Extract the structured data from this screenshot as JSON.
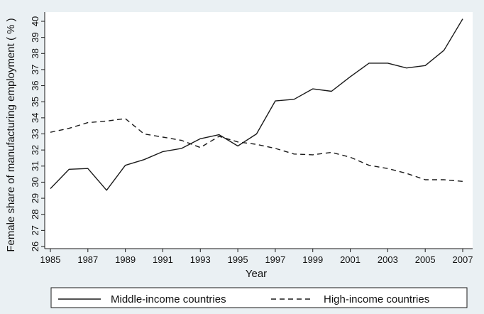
{
  "chart_data": {
    "type": "line",
    "title": "",
    "xlabel": "Year",
    "ylabel": "Female share of manufacturing employment ( % )",
    "xlim": [
      1985,
      2007
    ],
    "ylim": [
      26,
      40
    ],
    "x_ticks": [
      1985,
      1987,
      1989,
      1991,
      1993,
      1995,
      1997,
      1999,
      2001,
      2003,
      2005,
      2007
    ],
    "y_ticks": [
      26,
      27,
      28,
      29,
      30,
      31,
      32,
      33,
      34,
      35,
      36,
      37,
      38,
      39,
      40
    ],
    "grid": false,
    "legend_position": "bottom",
    "x": [
      1985,
      1986,
      1987,
      1988,
      1989,
      1990,
      1991,
      1992,
      1993,
      1994,
      1995,
      1996,
      1997,
      1998,
      1999,
      2000,
      2001,
      2002,
      2003,
      2004,
      2005,
      2006,
      2007
    ],
    "series": [
      {
        "name": "Middle-income countries",
        "style": "solid",
        "color": "#1a1a1a",
        "values": [
          29.6,
          30.8,
          30.85,
          29.5,
          31.05,
          31.4,
          31.9,
          32.1,
          32.7,
          32.95,
          32.25,
          33.0,
          35.05,
          35.15,
          35.8,
          35.65,
          36.55,
          37.4,
          37.4,
          37.1,
          37.25,
          38.2,
          40.15
        ]
      },
      {
        "name": "High-income countries",
        "style": "dashed",
        "color": "#1a1a1a",
        "values": [
          33.1,
          33.35,
          33.7,
          33.8,
          33.95,
          33.0,
          32.8,
          32.6,
          32.15,
          32.85,
          32.5,
          32.35,
          32.1,
          31.75,
          31.7,
          31.85,
          31.55,
          31.05,
          30.85,
          30.55,
          30.15,
          30.15,
          30.05
        ]
      }
    ]
  }
}
